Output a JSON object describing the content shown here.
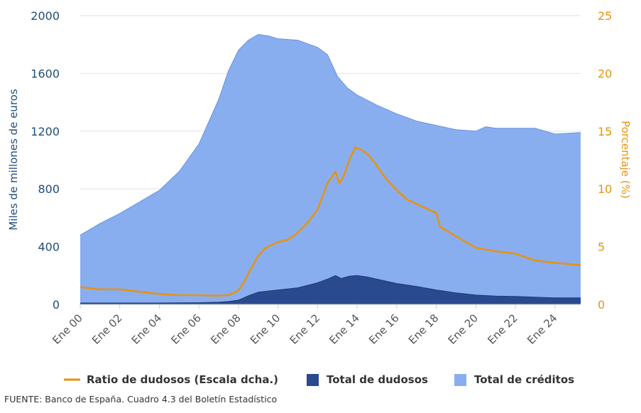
{
  "chart_data": {
    "type": "area",
    "ylabel": "Miles de millones de euros",
    "y2label": "Porcentaje (%)",
    "ylim": [
      0,
      2000
    ],
    "y2lim": [
      0,
      25
    ],
    "yticks": [
      "0",
      "400",
      "800",
      "1200",
      "1600",
      "2000"
    ],
    "y2ticks": [
      "0",
      "5",
      "10",
      "15",
      "20",
      "25"
    ],
    "xlim": [
      2000,
      2025.3
    ],
    "xtick_values": [
      2000,
      2002,
      2004,
      2006,
      2008,
      2010,
      2012,
      2014,
      2016,
      2018,
      2020,
      2022,
      2024
    ],
    "xtick_labels": [
      "Ene 00",
      "Ene 02",
      "Ene 04",
      "Ene 06",
      "Ene 08",
      "Ene 10",
      "Ene 12",
      "Ene 14",
      "Ene 16",
      "Ene 18",
      "Ene 20",
      "Ene 22",
      "Ene 24"
    ],
    "grid": true,
    "legend_position": "bottom",
    "series": [
      {
        "name": "Total de créditos",
        "kind": "area",
        "axis": "left",
        "color": "#89aef0",
        "x": [
          2000,
          2001,
          2002,
          2003,
          2004,
          2005,
          2006,
          2007,
          2007.5,
          2008,
          2008.5,
          2009,
          2009.5,
          2010,
          2011,
          2012,
          2012.5,
          2013,
          2013.5,
          2014,
          2015,
          2016,
          2017,
          2018,
          2019,
          2020,
          2020.5,
          2021,
          2022,
          2023,
          2024,
          2025.3
        ],
        "values": [
          480,
          560,
          630,
          710,
          790,
          920,
          1110,
          1420,
          1620,
          1760,
          1830,
          1870,
          1860,
          1840,
          1830,
          1780,
          1730,
          1580,
          1500,
          1450,
          1380,
          1320,
          1270,
          1240,
          1210,
          1200,
          1230,
          1220,
          1220,
          1220,
          1180,
          1190
        ]
      },
      {
        "name": "Total de dudosos",
        "kind": "area",
        "axis": "left",
        "color": "#2a4a8f",
        "x": [
          2000,
          2002,
          2004,
          2006,
          2007,
          2007.5,
          2008,
          2008.5,
          2009,
          2010,
          2011,
          2012,
          2012.5,
          2012.9,
          2013.2,
          2013.6,
          2014,
          2014.5,
          2015,
          2016,
          2017,
          2018,
          2019,
          2020,
          2021,
          2022,
          2023,
          2024,
          2025.3
        ],
        "values": [
          10,
          10,
          10,
          12,
          15,
          20,
          30,
          60,
          85,
          100,
          115,
          150,
          175,
          200,
          180,
          195,
          200,
          190,
          175,
          145,
          125,
          100,
          80,
          65,
          58,
          55,
          50,
          45,
          45
        ]
      },
      {
        "name": "Ratio de dudosos (Escala dcha.)",
        "kind": "line",
        "axis": "right",
        "color": "#e8930c",
        "x": [
          2000,
          2001,
          2002,
          2003,
          2004,
          2005,
          2006,
          2007,
          2007.5,
          2008,
          2008.3,
          2008.6,
          2009,
          2009.3,
          2009.6,
          2010,
          2010.5,
          2011,
          2011.5,
          2012,
          2012.5,
          2012.9,
          2013.1,
          2013.3,
          2013.6,
          2013.9,
          2014.2,
          2014.6,
          2015,
          2015.5,
          2016,
          2016.5,
          2017,
          2017.5,
          2018,
          2018.2,
          2019,
          2020,
          2021,
          2022,
          2023,
          2024,
          2025.3
        ],
        "values": [
          1.5,
          1.3,
          1.3,
          1.1,
          0.9,
          0.8,
          0.8,
          0.75,
          0.8,
          1.2,
          2.0,
          3.0,
          4.2,
          4.8,
          5.1,
          5.4,
          5.6,
          6.2,
          7.1,
          8.2,
          10.5,
          11.5,
          10.5,
          11.0,
          12.5,
          13.6,
          13.4,
          12.9,
          12.0,
          10.8,
          9.9,
          9.1,
          8.7,
          8.3,
          7.9,
          6.7,
          5.9,
          4.9,
          4.6,
          4.4,
          3.8,
          3.6,
          3.4
        ]
      }
    ]
  },
  "legend": {
    "items": [
      {
        "label": "Ratio de dudosos (Escala dcha.)",
        "color": "#e8930c",
        "shape": "line"
      },
      {
        "label": "Total de dudosos",
        "color": "#2a4a8f",
        "shape": "square"
      },
      {
        "label": "Total de créditos",
        "color": "#89aef0",
        "shape": "square"
      }
    ]
  },
  "source": "FUENTE: Banco de España. Cuadro 4.3 del Boletín Estadístico",
  "colors": {
    "left_axis": "#1f4e79",
    "right_axis": "#e8930c",
    "grid": "#e2e2e2",
    "axis_line": "#cccccc"
  }
}
